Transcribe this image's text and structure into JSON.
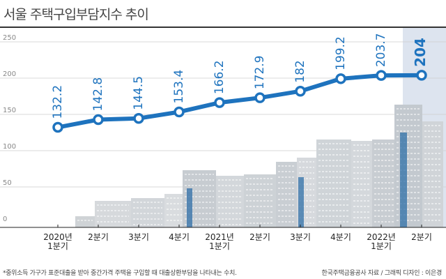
{
  "title": "서울 주택구입부담지수 추이",
  "footnote": "*중위소득 가구가 표준대출을 받아 중간가격 주택을 구입할 때 대출상환부담을 나타내는 수치.",
  "source": "한국주택금융공사 자료 / 그래픽 디자인 : 이은경",
  "colors": {
    "line": "#1e73be",
    "point_fill": "#ffffff",
    "highlight": "#dde4ef",
    "grid": "#cccccc",
    "axis": "#222222"
  },
  "chart_data": {
    "type": "line",
    "title": "서울 주택구입부담지수 추이",
    "categories": [
      [
        "2020년",
        "1분기"
      ],
      [
        "2분기"
      ],
      [
        "3분기"
      ],
      [
        "4분기"
      ],
      [
        "2021년",
        "1분기"
      ],
      [
        "2분기"
      ],
      [
        "3분기"
      ],
      [
        "4분기"
      ],
      [
        "2022년",
        "1분기"
      ],
      [
        "2분기"
      ]
    ],
    "values": [
      132.2,
      142.8,
      144.5,
      153.4,
      166.2,
      172.9,
      182,
      199.2,
      203.7,
      204
    ],
    "value_labels": [
      "132.2",
      "142.8",
      "144.5",
      "153.4",
      "166.2",
      "172.9",
      "182",
      "199.2",
      "203.7",
      "204"
    ],
    "yticks": [
      0,
      50,
      100,
      150,
      200,
      250
    ],
    "ylim": [
      0,
      250
    ],
    "grid": true,
    "highlight_last": true
  }
}
